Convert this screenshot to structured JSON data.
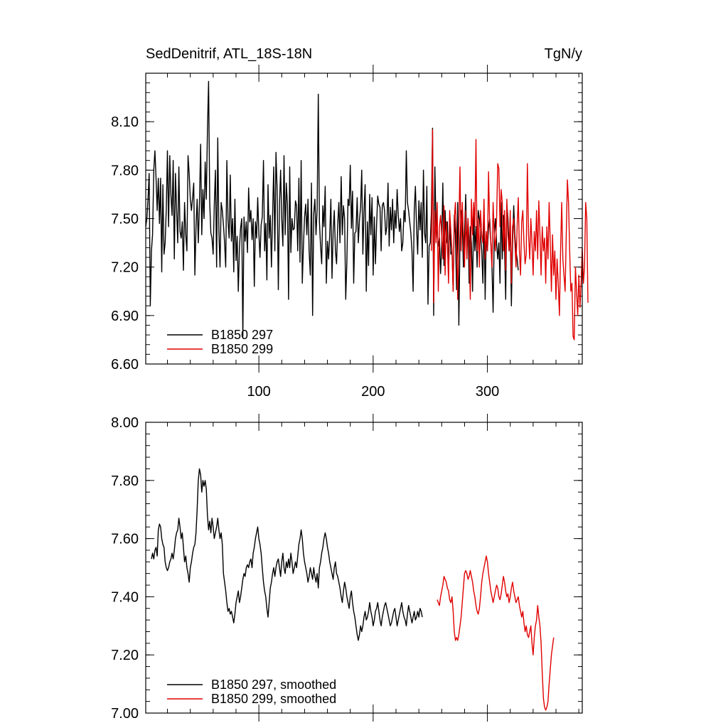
{
  "chart_data": [
    {
      "type": "line",
      "title": "SedDenitrif, ATL_18S-18N",
      "units": "TgN/y",
      "xlim": [
        1,
        383
      ],
      "ylim": [
        6.6,
        8.4
      ],
      "x_ticks": [
        100,
        200,
        300
      ],
      "y_ticks": [
        "6.60",
        "6.90",
        "7.20",
        "7.50",
        "7.80",
        "8.10"
      ],
      "legend_position": "bottom-left",
      "series": [
        {
          "name": "B1850 297",
          "color": "#000000",
          "x_start": 1,
          "values": [
            7.45,
            7.5,
            7.62,
            7.78,
            6.96,
            7.3,
            7.4,
            7.8,
            7.92,
            7.75,
            7.55,
            7.75,
            7.47,
            7.75,
            7.17,
            7.71,
            7.28,
            7.35,
            7.56,
            7.92,
            7.45,
            7.89,
            7.65,
            7.52,
            7.86,
            7.25,
            7.78,
            7.56,
            7.35,
            7.82,
            7.42,
            7.38,
            7.48,
            7.18,
            7.6,
            7.4,
            7.3,
            7.89,
            7.78,
            7.62,
            7.55,
            7.63,
            7.72,
            7.15,
            7.45,
            7.62,
            7.35,
            7.58,
            7.96,
            7.4,
            7.68,
            7.5,
            7.85,
            7.62,
            8.05,
            8.35,
            7.6,
            7.41,
            7.38,
            7.28,
            7.58,
            7.8,
            7.2,
            8.0,
            7.42,
            7.2,
            7.6,
            7.55,
            7.46,
            7.35,
            7.2,
            7.86,
            7.49,
            7.38,
            7.77,
            7.36,
            7.5,
            7.17,
            7.62,
            7.24,
            7.39,
            7.05,
            7.32,
            7.44,
            7.5,
            6.77,
            7.51,
            7.36,
            7.48,
            7.29,
            7.69,
            7.48,
            7.55,
            7.37,
            7.5,
            7.08,
            7.48,
            7.38,
            7.63,
            7.41,
            7.26,
            7.46,
            7.51,
            7.86,
            7.3,
            7.47,
            7.12,
            7.71,
            7.38,
            7.52,
            7.2,
            7.52,
            7.82,
            7.3,
            7.91,
            7.68,
            7.06,
            7.58,
            7.8,
            7.5,
            7.33,
            7.89,
            7.4,
            7.72,
            7.59,
            7.0,
            7.82,
            7.29,
            7.5,
            7.43,
            7.44,
            7.61,
            7.58,
            7.3,
            7.75,
            7.23,
            7.86,
            7.1,
            7.33,
            7.51,
            7.59,
            7.4,
            7.62,
            7.3,
            7.15,
            7.72,
            6.9,
            7.53,
            7.62,
            7.4,
            7.56,
            8.27,
            7.48,
            7.33,
            7.22,
            7.58,
            7.45,
            7.7,
            7.1,
            7.36,
            7.25,
            7.4,
            7.62,
            7.13,
            7.42,
            7.55,
            7.3,
            7.22,
            7.46,
            7.6,
            7.35,
            7.76,
            7.4,
            7.58,
            7.5,
            7.0,
            7.23,
            7.62,
            7.58,
            7.83,
            7.44,
            7.67,
            7.1,
            7.41,
            7.42,
            7.63,
            7.35,
            7.49,
            7.57,
            7.8,
            7.28,
            7.55,
            7.71,
            7.05,
            7.48,
            7.21,
            7.65,
            7.4,
            7.63,
            7.15,
            7.51,
            7.22,
            7.46,
            7.64,
            7.59,
            7.57,
            7.3,
            7.58,
            7.6,
            7.55,
            7.4,
            7.45,
            7.72,
            7.33,
            7.57,
            7.43,
            7.62,
            7.35,
            7.55,
            7.44,
            7.68,
            7.52,
            7.42,
            7.5,
            7.3,
            7.35,
            7.55,
            7.48,
            7.92,
            7.6,
            7.55,
            7.48,
            7.41,
            7.3,
            7.05,
            7.55,
            7.7,
            7.45,
            7.28,
            7.61,
            7.43,
            7.6,
            7.26,
            7.8,
            7.41,
            7.35,
            7.7,
            6.97,
            7.33,
            7.35,
            7.54,
            8.06,
            6.9,
            7.82,
            7.45,
            7.41,
            7.33,
            7.38,
            7.16,
            7.33,
            7.72,
            7.21,
            7.55,
            7.35,
            7.48,
            7.15,
            7.5,
            7.28,
            7.3,
            7.05,
            7.52,
            7.4,
            7.06,
            7.6,
            6.84,
            7.36,
            7.55,
            7.5,
            7.2,
            7.4,
            7.65,
            7.3,
            7.5,
            7.1,
            7.45,
            7.35,
            7.05,
            7.55,
            7.3,
            7.45,
            7.2,
            7.55,
            7.5,
            7.4,
            7.3,
            7.1,
            7.55,
            7.0,
            7.4,
            7.3,
            7.45,
            7.5,
            7.35,
            7.2,
            6.92,
            7.4,
            7.5,
            7.35,
            7.25,
            7.35,
            7.1,
            7.6,
            7.25,
            7.52,
            7.32,
            7.0,
            7.59,
            7.5,
            7.3,
            7.45,
            6.96,
            7.35,
            7.58,
            7.4,
            7.3,
            7.25,
            7.18
          ]
        },
        {
          "name": "B1850 299",
          "color": "#e00000",
          "x_start": 251,
          "values": [
            7.3,
            8.05,
            6.98,
            7.55,
            7.35,
            7.6,
            7.05,
            7.45,
            7.52,
            7.4,
            7.25,
            7.58,
            7.15,
            7.48,
            7.35,
            7.1,
            7.55,
            7.42,
            7.3,
            7.05,
            7.5,
            7.6,
            7.35,
            7.0,
            7.45,
            7.82,
            7.3,
            7.6,
            7.4,
            7.2,
            7.55,
            7.25,
            7.5,
            7.35,
            7.0,
            7.62,
            7.4,
            7.6,
            7.45,
            7.99,
            7.3,
            7.5,
            7.2,
            7.55,
            7.4,
            7.35,
            7.62,
            7.25,
            7.42,
            7.3,
            7.79,
            7.45,
            7.35,
            7.2,
            7.6,
            7.4,
            7.3,
            7.5,
            7.84,
            7.81,
            7.45,
            7.68,
            7.6,
            7.3,
            7.55,
            7.18,
            7.62,
            7.4,
            7.3,
            7.55,
            7.1,
            7.45,
            7.5,
            7.35,
            7.2,
            7.45,
            7.63,
            7.3,
            7.15,
            7.48,
            7.55,
            7.35,
            7.22,
            7.28,
            7.84,
            7.4,
            7.25,
            7.5,
            7.35,
            7.15,
            7.42,
            7.3,
            7.55,
            7.25,
            7.61,
            7.4,
            7.15,
            7.45,
            7.3,
            7.38,
            7.1,
            7.45,
            7.25,
            7.6,
            7.35,
            7.05,
            7.4,
            7.15,
            7.3,
            7.0,
            7.25,
            7.1,
            6.9,
            7.3,
            7.6,
            7.25,
            7.15,
            7.05,
            7.4,
            7.74,
            7.6,
            7.3,
            7.05,
            7.1,
            6.77,
            6.75,
            7.2,
            7.05,
            6.9,
            7.15,
            6.95,
            7.1,
            7.32,
            7.1,
            7.2,
            7.6,
            7.5,
            6.98
          ]
        }
      ]
    },
    {
      "type": "line",
      "title": "",
      "xlim": [
        1,
        383
      ],
      "ylim": [
        7.0,
        8.0
      ],
      "x_ticks": [
        100,
        200,
        300
      ],
      "y_ticks": [
        "7.00",
        "7.20",
        "7.40",
        "7.60",
        "7.80",
        "8.00"
      ],
      "legend_position": "bottom-left",
      "series": [
        {
          "name": "B1850 297, smoothed",
          "color": "#000000",
          "x_start": 6,
          "values": [
            7.53,
            7.55,
            7.53,
            7.56,
            7.57,
            7.54,
            7.63,
            7.65,
            7.64,
            7.6,
            7.58,
            7.57,
            7.52,
            7.5,
            7.49,
            7.5,
            7.52,
            7.53,
            7.55,
            7.53,
            7.56,
            7.6,
            7.62,
            7.63,
            7.67,
            7.64,
            7.6,
            7.62,
            7.57,
            7.52,
            7.54,
            7.5,
            7.48,
            7.45,
            7.5,
            7.52,
            7.55,
            7.57,
            7.58,
            7.62,
            7.7,
            7.8,
            7.84,
            7.82,
            7.76,
            7.8,
            7.78,
            7.8,
            7.77,
            7.68,
            7.63,
            7.66,
            7.62,
            7.67,
            7.64,
            7.6,
            7.62,
            7.64,
            7.67,
            7.63,
            7.6,
            7.62,
            7.58,
            7.48,
            7.45,
            7.42,
            7.38,
            7.35,
            7.36,
            7.34,
            7.35,
            7.33,
            7.31,
            7.34,
            7.38,
            7.4,
            7.42,
            7.38,
            7.4,
            7.43,
            7.46,
            7.48,
            7.47,
            7.5,
            7.51,
            7.5,
            7.52,
            7.53,
            7.5,
            7.55,
            7.57,
            7.6,
            7.62,
            7.64,
            7.6,
            7.58,
            7.55,
            7.5,
            7.45,
            7.42,
            7.4,
            7.36,
            7.33,
            7.38,
            7.43,
            7.45,
            7.48,
            7.5,
            7.47,
            7.5,
            7.52,
            7.53,
            7.5,
            7.47,
            7.52,
            7.55,
            7.5,
            7.48,
            7.52,
            7.5,
            7.53,
            7.5,
            7.55,
            7.52,
            7.48,
            7.5,
            7.52,
            7.5,
            7.54,
            7.58,
            7.6,
            7.63,
            7.6,
            7.55,
            7.52,
            7.5,
            7.48,
            7.45,
            7.47,
            7.5,
            7.48,
            7.46,
            7.5,
            7.47,
            7.45,
            7.48,
            7.43,
            7.5,
            7.52,
            7.55,
            7.57,
            7.6,
            7.62,
            7.6,
            7.57,
            7.55,
            7.52,
            7.5,
            7.48,
            7.46,
            7.5,
            7.52,
            7.48,
            7.47,
            7.45,
            7.43,
            7.4,
            7.38,
            7.42,
            7.45,
            7.43,
            7.4,
            7.38,
            7.36,
            7.4,
            7.42,
            7.38,
            7.35,
            7.33,
            7.3,
            7.27,
            7.25,
            7.27,
            7.3,
            7.28,
            7.3,
            7.33,
            7.35,
            7.32,
            7.33,
            7.35,
            7.38,
            7.35,
            7.33,
            7.3,
            7.32,
            7.35,
            7.36,
            7.38,
            7.35,
            7.32,
            7.3,
            7.33,
            7.35,
            7.37,
            7.38,
            7.36,
            7.34,
            7.32,
            7.3,
            7.31,
            7.33,
            7.35,
            7.36,
            7.33,
            7.3,
            7.32,
            7.34,
            7.36,
            7.38,
            7.35,
            7.33,
            7.32,
            7.3,
            7.34,
            7.37,
            7.35,
            7.33,
            7.31,
            7.33,
            7.35,
            7.32,
            7.33,
            7.35,
            7.33,
            7.36,
            7.35,
            7.33
          ]
        },
        {
          "name": "B1850 299, smoothed",
          "color": "#e00000",
          "x_start": 256,
          "values": [
            7.39,
            7.38,
            7.37,
            7.4,
            7.42,
            7.44,
            7.47,
            7.46,
            7.45,
            7.43,
            7.42,
            7.39,
            7.38,
            7.4,
            7.35,
            7.28,
            7.25,
            7.26,
            7.25,
            7.27,
            7.3,
            7.33,
            7.38,
            7.43,
            7.48,
            7.49,
            7.48,
            7.46,
            7.47,
            7.49,
            7.47,
            7.45,
            7.42,
            7.4,
            7.37,
            7.35,
            7.34,
            7.36,
            7.4,
            7.45,
            7.48,
            7.5,
            7.52,
            7.54,
            7.52,
            7.48,
            7.45,
            7.42,
            7.4,
            7.38,
            7.4,
            7.42,
            7.44,
            7.43,
            7.4,
            7.39,
            7.41,
            7.44,
            7.47,
            7.45,
            7.42,
            7.4,
            7.41,
            7.38,
            7.4,
            7.43,
            7.45,
            7.42,
            7.4,
            7.38,
            7.39,
            7.4,
            7.37,
            7.35,
            7.33,
            7.35,
            7.31,
            7.28,
            7.3,
            7.27,
            7.26,
            7.28,
            7.3,
            7.24,
            7.2,
            7.26,
            7.3,
            7.32,
            7.37,
            7.33,
            7.3,
            7.24,
            7.14,
            7.05,
            7.02,
            7.01,
            7.02,
            7.04,
            7.1,
            7.15,
            7.2,
            7.23,
            7.26
          ]
        }
      ]
    }
  ]
}
